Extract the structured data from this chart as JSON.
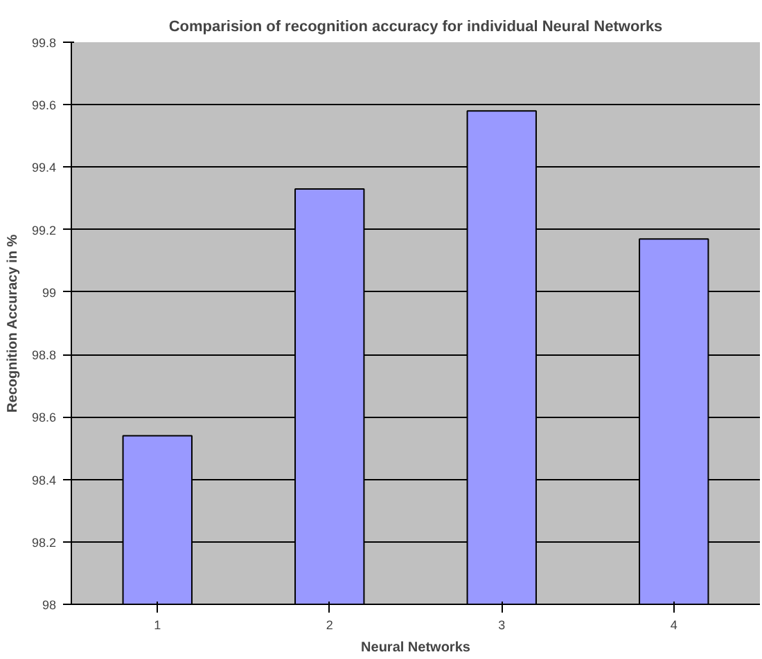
{
  "chart_data": {
    "type": "bar",
    "title": "Comparision of recognition accuracy for individual Neural Networks",
    "xlabel": "Neural Networks",
    "ylabel": "Recognition Accuracy in %",
    "categories": [
      "1",
      "2",
      "3",
      "4"
    ],
    "values": [
      98.54,
      99.33,
      99.58,
      99.17
    ],
    "color": "#9999ff",
    "ylim": [
      98,
      99.8
    ],
    "yticks": [
      98,
      98.2,
      98.4,
      98.6,
      98.8,
      99,
      99.2,
      99.4,
      99.6,
      99.8
    ],
    "grid": "y"
  }
}
